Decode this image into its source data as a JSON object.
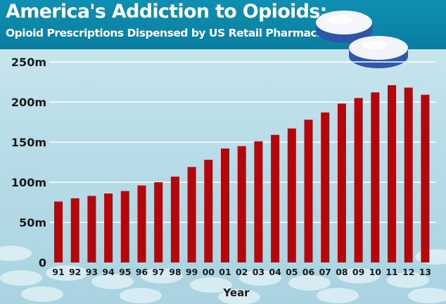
{
  "header": {
    "title": "America's Addiction to Opioids:",
    "subtitle": "Opioid Prescriptions Dispensed by US Retail Pharmacies"
  },
  "colors": {
    "bar": "#b3070c",
    "header_bg": "#0a7ea0",
    "axis_text": "#1a1a1a",
    "grid": "#ffffff"
  },
  "chart_data": {
    "type": "bar",
    "categories": [
      "91",
      "92",
      "93",
      "94",
      "95",
      "96",
      "97",
      "98",
      "99",
      "00",
      "01",
      "02",
      "03",
      "04",
      "05",
      "06",
      "07",
      "08",
      "09",
      "10",
      "11",
      "12",
      "13"
    ],
    "values": [
      76,
      80,
      83,
      86,
      89,
      96,
      100,
      107,
      119,
      128,
      142,
      145,
      151,
      159,
      167,
      178,
      187,
      198,
      205,
      212,
      221,
      218,
      209
    ],
    "title": "America's Addiction to Opioids:",
    "subtitle": "Opioid Prescriptions Dispensed by US Retail Pharmacies",
    "xlabel": "Year",
    "ylabel": "",
    "ylim": [
      0,
      250
    ],
    "yticks": [
      0,
      50,
      100,
      150,
      200,
      250
    ],
    "ytick_labels": [
      "0",
      "50m",
      "100m",
      "150m",
      "200m",
      "250m"
    ],
    "grid": true,
    "legend": "none"
  }
}
